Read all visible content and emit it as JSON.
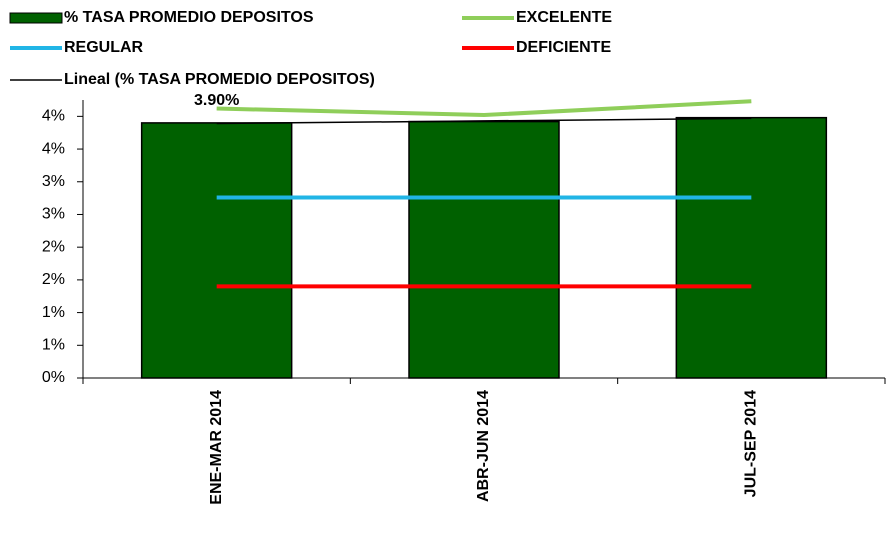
{
  "chart_data": {
    "type": "bar",
    "categories": [
      "ENE-MAR 2014",
      "ABR-JUN 2014",
      "JUL-SEP 2014"
    ],
    "series": [
      {
        "name": "% TASA PROMEDIO DEPOSITOS",
        "type": "bar",
        "color": "#006100",
        "values": [
          3.9,
          3.92,
          3.98
        ],
        "value_labels": [
          "3.90%",
          null,
          null
        ]
      },
      {
        "name": "EXCELENTE",
        "type": "line",
        "color": "#8fce5a",
        "values": [
          4.12,
          4.02,
          4.23
        ]
      },
      {
        "name": "REGULAR",
        "type": "line",
        "color": "#21b5e6",
        "values": [
          2.76,
          2.76,
          2.76
        ]
      },
      {
        "name": "DEFICIENTE",
        "type": "line",
        "color": "#ff0000",
        "values": [
          1.4,
          1.4,
          1.4
        ]
      },
      {
        "name": "Lineal (% TASA PROMEDIO DEPOSITOS)",
        "type": "line",
        "color": "#000000",
        "values": [
          3.89,
          3.93,
          3.97
        ]
      }
    ],
    "ylim": [
      0,
      4.25
    ],
    "yticks": [
      {
        "value": 0,
        "label": "0%"
      },
      {
        "value": 0.5,
        "label": "1%"
      },
      {
        "value": 1,
        "label": "1%"
      },
      {
        "value": 1.5,
        "label": "2%"
      },
      {
        "value": 2,
        "label": "2%"
      },
      {
        "value": 2.5,
        "label": "3%"
      },
      {
        "value": 3,
        "label": "3%"
      },
      {
        "value": 3.5,
        "label": "4%"
      },
      {
        "value": 4,
        "label": "4%"
      }
    ],
    "grid": false
  }
}
